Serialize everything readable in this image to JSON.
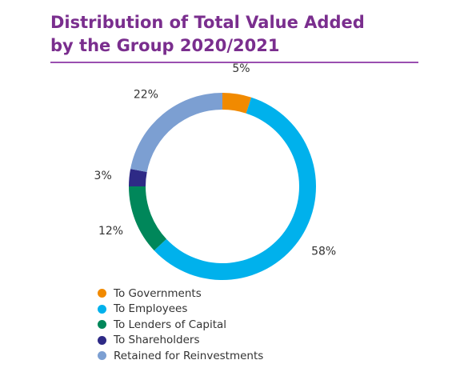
{
  "chart_data": {
    "type": "pie",
    "title_line1": "Distribution of Total Value Added",
    "title_line2": "by the Group 2020/2021",
    "categories": [
      "To Governments",
      "To Employees",
      "To Lenders of Capital",
      "To Shareholders",
      "Retained for Reinvestments"
    ],
    "values": [
      5,
      58,
      12,
      3,
      22
    ],
    "value_labels": [
      "5%",
      "58%",
      "12%",
      "3%",
      "22%"
    ],
    "colors": [
      "#f18a00",
      "#00b1ec",
      "#00875a",
      "#2e2a86",
      "#7c9fd2"
    ],
    "donut": true,
    "legend_position": "bottom-left"
  }
}
